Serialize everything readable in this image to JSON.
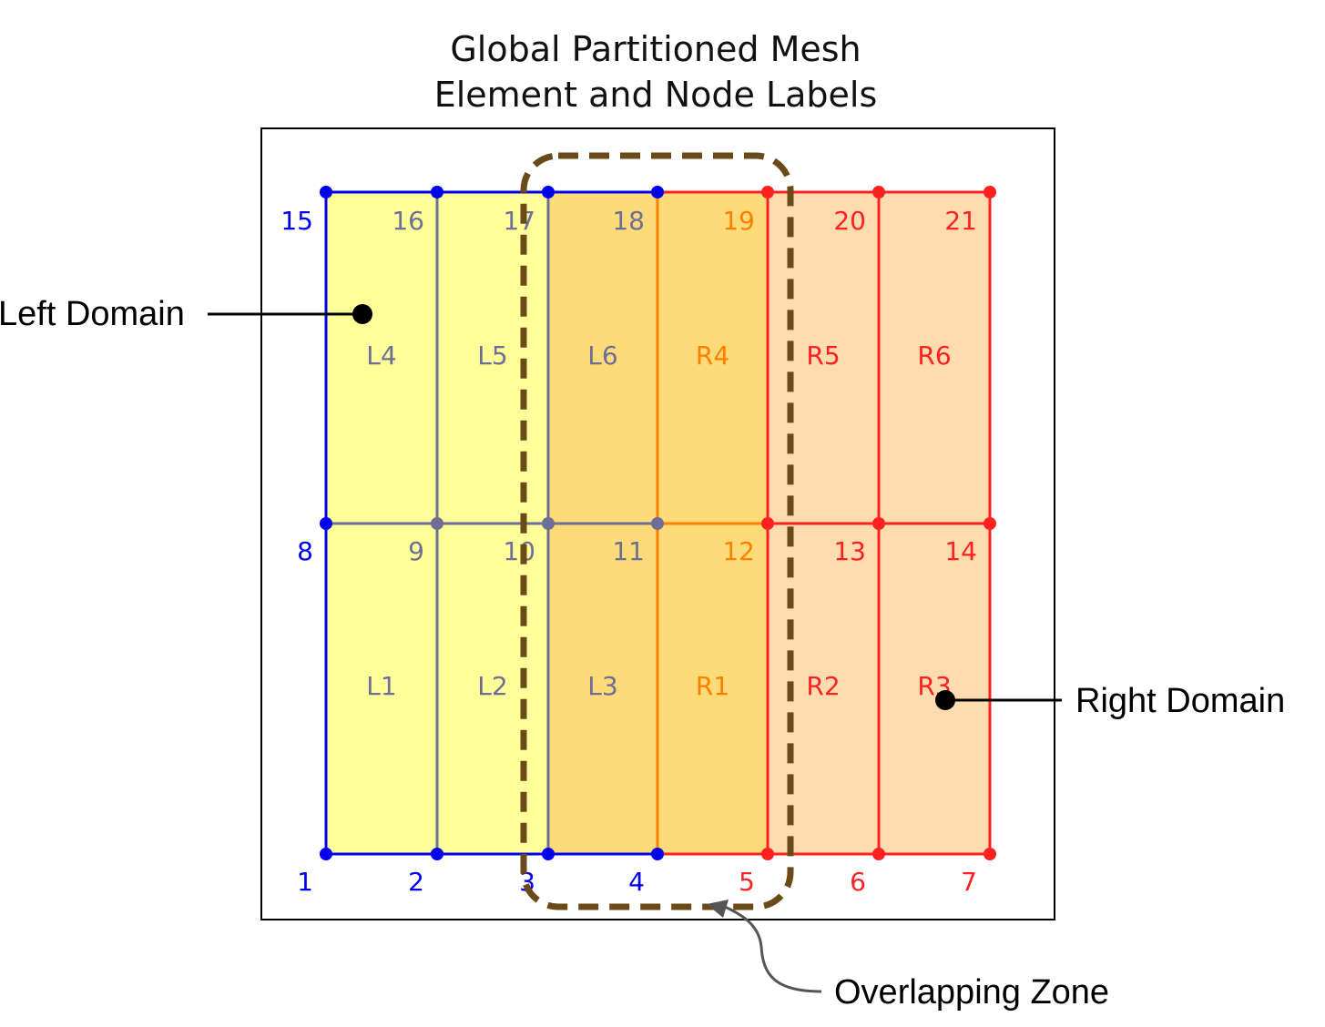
{
  "title": {
    "line1": "Global Partitioned Mesh",
    "line2": "Element and Node Labels"
  },
  "colors": {
    "left_fill": "#ffff99",
    "overlap_fill": "#fddb78",
    "right_fill": "#fedcb0",
    "left_nodes": "#0000ee",
    "interior_grey": "#6e6e96",
    "orange": "#ff8000",
    "right_red": "#ff2020",
    "overlap_dash": "#6b4a1a"
  },
  "node_rows": [
    [
      "1",
      "2",
      "3",
      "4",
      "5",
      "6",
      "7"
    ],
    [
      "8",
      "9",
      "10",
      "11",
      "12",
      "13",
      "14"
    ],
    [
      "15",
      "16",
      "17",
      "18",
      "19",
      "20",
      "21"
    ]
  ],
  "element_rows": [
    [
      "L1",
      "L2",
      "L3",
      "R1",
      "R2",
      "R3"
    ],
    [
      "L4",
      "L5",
      "L6",
      "R4",
      "R5",
      "R6"
    ]
  ],
  "callouts": {
    "left": "Left Domain",
    "right": "Right Domain",
    "overlap": "Overlapping Zone"
  }
}
